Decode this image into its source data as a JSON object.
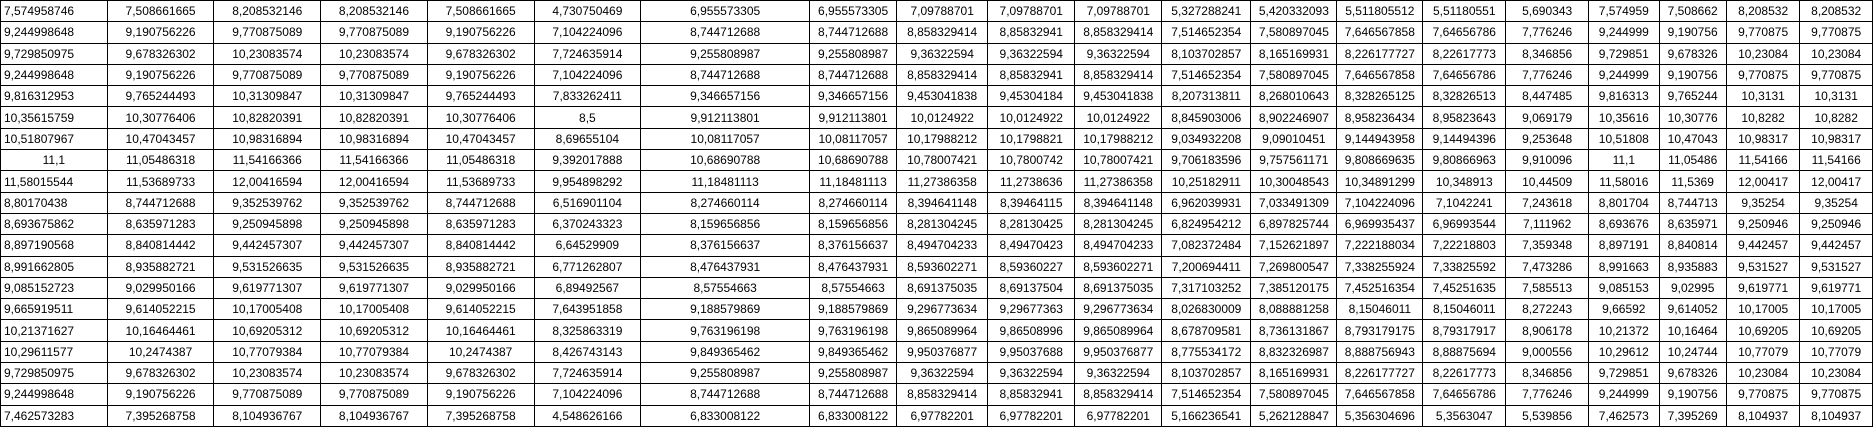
{
  "sheet": {
    "rows": [
      [
        "7,574958746",
        "7,508661665",
        "8,208532146",
        "8,208532146",
        "7,508661665",
        "4,730750469",
        "6,955573305",
        "6,955573305",
        "7,09788701",
        "7,09788701",
        "7,09788701",
        "5,327288241",
        "5,420332093",
        "5,511805512",
        "5,51180551",
        "5,690343",
        "7,574959",
        "7,508662",
        "8,208532",
        "8,208532"
      ],
      [
        "9,244998648",
        "9,190756226",
        "9,770875089",
        "9,770875089",
        "9,190756226",
        "7,104224096",
        "8,744712688",
        "8,744712688",
        "8,858329414",
        "8,85832941",
        "8,858329414",
        "7,514652354",
        "7,580897045",
        "7,646567858",
        "7,64656786",
        "7,776246",
        "9,244999",
        "9,190756",
        "9,770875",
        "9,770875"
      ],
      [
        "9,729850975",
        "9,678326302",
        "10,23083574",
        "10,23083574",
        "9,678326302",
        "7,724635914",
        "9,255808987",
        "9,255808987",
        "9,36322594",
        "9,36322594",
        "9,36322594",
        "8,103702857",
        "8,165169931",
        "8,226177727",
        "8,22617773",
        "8,346856",
        "9,729851",
        "9,678326",
        "10,23084",
        "10,23084"
      ],
      [
        "9,244998648",
        "9,190756226",
        "9,770875089",
        "9,770875089",
        "9,190756226",
        "7,104224096",
        "8,744712688",
        "8,744712688",
        "8,858329414",
        "8,85832941",
        "8,858329414",
        "7,514652354",
        "7,580897045",
        "7,646567858",
        "7,64656786",
        "7,776246",
        "9,244999",
        "9,190756",
        "9,770875",
        "9,770875"
      ],
      [
        "9,816312953",
        "9,765244493",
        "10,31309847",
        "10,31309847",
        "9,765244493",
        "7,833262411",
        "9,346657156",
        "9,346657156",
        "9,453041838",
        "9,45304184",
        "9,453041838",
        "8,207313811",
        "8,268010643",
        "8,328265125",
        "8,32826513",
        "8,447485",
        "9,816313",
        "9,765244",
        "10,3131",
        "10,3131"
      ],
      [
        "10,35615759",
        "10,30776406",
        "10,82820391",
        "10,82820391",
        "10,30776406",
        "8,5",
        "9,912113801",
        "9,912113801",
        "10,0124922",
        "10,0124922",
        "10,0124922",
        "8,845903006",
        "8,902246907",
        "8,958236434",
        "8,95823643",
        "9,069179",
        "10,35616",
        "10,30776",
        "10,8282",
        "10,8282"
      ],
      [
        "10,51807967",
        "10,47043457",
        "10,98316894",
        "10,98316894",
        "10,47043457",
        "8,69655104",
        "10,08117057",
        "10,08117057",
        "10,17988212",
        "10,1798821",
        "10,17988212",
        "9,034932208",
        "9,09010451",
        "9,144943958",
        "9,14494396",
        "9,253648",
        "10,51808",
        "10,47043",
        "10,98317",
        "10,98317"
      ],
      [
        "11,1",
        "11,05486318",
        "11,54166366",
        "11,54166366",
        "11,05486318",
        "9,392017888",
        "10,68690788",
        "10,68690788",
        "10,78007421",
        "10,7800742",
        "10,78007421",
        "9,706183596",
        "9,757561171",
        "9,808669635",
        "9,80866963",
        "9,910096",
        "11,1",
        "11,05486",
        "11,54166",
        "11,54166"
      ],
      [
        "11,58015544",
        "11,53689733",
        "12,00416594",
        "12,00416594",
        "11,53689733",
        "9,954898292",
        "11,18481113",
        "11,18481113",
        "11,27386358",
        "11,2738636",
        "11,27386358",
        "10,25182911",
        "10,30048543",
        "10,34891299",
        "10,348913",
        "10,44509",
        "11,58016",
        "11,5369",
        "12,00417",
        "12,00417"
      ],
      [
        "8,80170438",
        "8,744712688",
        "9,352539762",
        "9,352539762",
        "8,744712688",
        "6,516901104",
        "8,274660114",
        "8,274660114",
        "8,394641148",
        "8,39464115",
        "8,394641148",
        "6,962039931",
        "7,033491309",
        "7,104224096",
        "7,1042241",
        "7,243618",
        "8,801704",
        "8,744713",
        "9,35254",
        "9,35254"
      ],
      [
        "8,693675862",
        "8,635971283",
        "9,250945898",
        "9,250945898",
        "8,635971283",
        "6,370243323",
        "8,159656856",
        "8,159656856",
        "8,281304245",
        "8,28130425",
        "8,281304245",
        "6,824954212",
        "6,897825744",
        "6,969935437",
        "6,96993544",
        "7,111962",
        "8,693676",
        "8,635971",
        "9,250946",
        "9,250946"
      ],
      [
        "8,897190568",
        "8,840814442",
        "9,442457307",
        "9,442457307",
        "8,840814442",
        "6,64529909",
        "8,376156637",
        "8,376156637",
        "8,494704233",
        "8,49470423",
        "8,494704233",
        "7,082372484",
        "7,152621897",
        "7,222188034",
        "7,22218803",
        "7,359348",
        "8,897191",
        "8,840814",
        "9,442457",
        "9,442457"
      ],
      [
        "8,991662805",
        "8,935882721",
        "9,531526635",
        "9,531526635",
        "8,935882721",
        "6,771262807",
        "8,476437931",
        "8,476437931",
        "8,593602271",
        "8,59360227",
        "8,593602271",
        "7,200694411",
        "7,269800547",
        "7,338255924",
        "7,33825592",
        "7,473286",
        "8,991663",
        "8,935883",
        "9,531527",
        "9,531527"
      ],
      [
        "9,085152723",
        "9,029950166",
        "9,619771307",
        "9,619771307",
        "9,029950166",
        "6,89492567",
        "8,57554663",
        "8,57554663",
        "8,691375035",
        "8,69137504",
        "8,691375035",
        "7,317103252",
        "7,385120175",
        "7,452516354",
        "7,45251635",
        "7,585513",
        "9,085153",
        "9,02995",
        "9,619771",
        "9,619771"
      ],
      [
        "9,665919511",
        "9,614052215",
        "10,17005408",
        "10,17005408",
        "9,614052215",
        "7,643951858",
        "9,188579869",
        "9,188579869",
        "9,296773634",
        "9,29677363",
        "9,296773634",
        "8,026830009",
        "8,088881258",
        "8,15046011",
        "8,15046011",
        "8,272243",
        "9,66592",
        "9,614052",
        "10,17005",
        "10,17005"
      ],
      [
        "10,21371627",
        "10,16464461",
        "10,69205312",
        "10,69205312",
        "10,16464461",
        "8,325863319",
        "9,763196198",
        "9,763196198",
        "9,865089964",
        "9,86508996",
        "9,865089964",
        "8,678709581",
        "8,736131867",
        "8,793179175",
        "8,79317917",
        "8,906178",
        "10,21372",
        "10,16464",
        "10,69205",
        "10,69205"
      ],
      [
        "10,29611577",
        "10,2474387",
        "10,77079384",
        "10,77079384",
        "10,2474387",
        "8,426743143",
        "9,849365462",
        "9,849365462",
        "9,950376877",
        "9,95037688",
        "9,950376877",
        "8,775534172",
        "8,832326987",
        "8,888756943",
        "8,88875694",
        "9,000556",
        "10,29612",
        "10,24744",
        "10,77079",
        "10,77079"
      ],
      [
        "9,729850975",
        "9,678326302",
        "10,23083574",
        "10,23083574",
        "9,678326302",
        "7,724635914",
        "9,255808987",
        "9,255808987",
        "9,36322594",
        "9,36322594",
        "9,36322594",
        "8,103702857",
        "8,165169931",
        "8,226177727",
        "8,22617773",
        "8,346856",
        "9,729851",
        "9,678326",
        "10,23084",
        "10,23084"
      ],
      [
        "9,244998648",
        "9,190756226",
        "9,770875089",
        "9,770875089",
        "9,190756226",
        "7,104224096",
        "8,744712688",
        "8,744712688",
        "8,858329414",
        "8,85832941",
        "8,858329414",
        "7,514652354",
        "7,580897045",
        "7,646567858",
        "7,64656786",
        "7,776246",
        "9,244999",
        "9,190756",
        "9,770875",
        "9,770875"
      ],
      [
        "7,462573283",
        "7,395268758",
        "8,104936767",
        "8,104936767",
        "7,395268758",
        "4,548626166",
        "6,833008122",
        "6,833008122",
        "6,97782201",
        "6,97782201",
        "6,97782201",
        "5,166236541",
        "5,262128847",
        "5,356304696",
        "5,3563047",
        "5,539856",
        "7,462573",
        "7,395269",
        "8,104937",
        "8,104937"
      ]
    ]
  }
}
